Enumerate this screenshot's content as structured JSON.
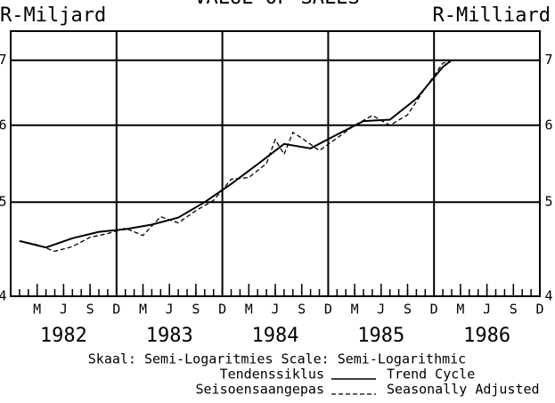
{
  "chart_data": {
    "type": "line",
    "title": "VALUE OF SALES",
    "y_label_left": "R-Miljard",
    "y_label_right": "R-Milliard",
    "scale_note": "Skaal: Semi-Logaritmies  Scale: Semi-Logarithmic",
    "log_y": true,
    "grid": true,
    "ylim": [
      4,
      7.5
    ],
    "yticks": [
      4,
      5,
      6,
      7
    ],
    "xlim": [
      "1981-12",
      "1986-12"
    ],
    "xticks": [
      {
        "value": "1982-03",
        "label": "M"
      },
      {
        "value": "1982-06",
        "label": "J"
      },
      {
        "value": "1982-09",
        "label": "S"
      },
      {
        "value": "1982-12",
        "label": "D"
      },
      {
        "value": "1983-03",
        "label": "M"
      },
      {
        "value": "1983-06",
        "label": "J"
      },
      {
        "value": "1983-09",
        "label": "S"
      },
      {
        "value": "1983-12",
        "label": "D"
      },
      {
        "value": "1984-03",
        "label": "M"
      },
      {
        "value": "1984-06",
        "label": "J"
      },
      {
        "value": "1984-09",
        "label": "S"
      },
      {
        "value": "1984-12",
        "label": "D"
      },
      {
        "value": "1985-03",
        "label": "M"
      },
      {
        "value": "1985-06",
        "label": "J"
      },
      {
        "value": "1985-09",
        "label": "S"
      },
      {
        "value": "1985-12",
        "label": "D"
      },
      {
        "value": "1986-03",
        "label": "M"
      },
      {
        "value": "1986-06",
        "label": "J"
      },
      {
        "value": "1986-09",
        "label": "S"
      },
      {
        "value": "1986-12",
        "label": "D"
      }
    ],
    "year_labels": [
      {
        "value": "1982-06",
        "label": "1982"
      },
      {
        "value": "1983-06",
        "label": "1983"
      },
      {
        "value": "1984-06",
        "label": "1984"
      },
      {
        "value": "1985-06",
        "label": "1985"
      },
      {
        "value": "1986-06",
        "label": "1986"
      }
    ],
    "series": [
      {
        "name": "Trend Cycle",
        "label_af": "Tendenssiklus",
        "color": "#000000",
        "style": "solid",
        "x": [
          "1982-01",
          "1982-04",
          "1982-07",
          "1982-10",
          "1983-01",
          "1983-04",
          "1983-07",
          "1983-10",
          "1984-01",
          "1984-04",
          "1984-07",
          "1984-10",
          "1985-01",
          "1985-04",
          "1985-07",
          "1985-10",
          "1986-01",
          "1986-02"
        ],
        "values": [
          4.56,
          4.49,
          4.59,
          4.66,
          4.69,
          4.74,
          4.82,
          5.0,
          5.22,
          5.47,
          5.74,
          5.68,
          5.87,
          6.06,
          6.08,
          6.39,
          6.89,
          7.0
        ]
      },
      {
        "name": "Seasonally Adjusted",
        "label_af": "Seisoensaangepas",
        "color": "#000000",
        "style": "dashed",
        "x": [
          "1982-01",
          "1982-03",
          "1982-05",
          "1982-07",
          "1982-09",
          "1982-11",
          "1983-01",
          "1983-03",
          "1983-05",
          "1983-07",
          "1983-09",
          "1983-11",
          "1984-01",
          "1984-03",
          "1984-05",
          "1984-06",
          "1984-07",
          "1984-08",
          "1984-09",
          "1984-11",
          "1985-01",
          "1985-03",
          "1985-05",
          "1985-07",
          "1985-09",
          "1985-11",
          "1986-01",
          "1986-02"
        ],
        "values": [
          4.56,
          4.52,
          4.45,
          4.5,
          4.6,
          4.64,
          4.7,
          4.62,
          4.83,
          4.76,
          4.9,
          5.02,
          5.28,
          5.3,
          5.48,
          5.8,
          5.6,
          5.9,
          5.82,
          5.65,
          5.82,
          6.0,
          6.14,
          6.0,
          6.15,
          6.55,
          6.95,
          7.0
        ]
      }
    ]
  }
}
